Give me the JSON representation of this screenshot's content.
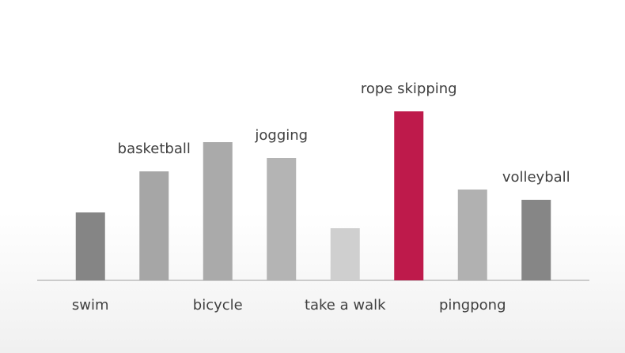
{
  "chart_data": {
    "type": "bar",
    "categories": [
      "swim",
      "basketball",
      "bicycle",
      "jogging",
      "take a walk",
      "rope skipping",
      "pingpong",
      "volleyball"
    ],
    "values": [
      86,
      138,
      175,
      155,
      66,
      214,
      115,
      102
    ],
    "colors": [
      "#858585",
      "#a6a6a6",
      "#aaaaaa",
      "#b4b4b4",
      "#cfcfcf",
      "#be1a4b",
      "#b1b1b1",
      "#868686"
    ],
    "ylim": [
      0,
      290
    ]
  }
}
